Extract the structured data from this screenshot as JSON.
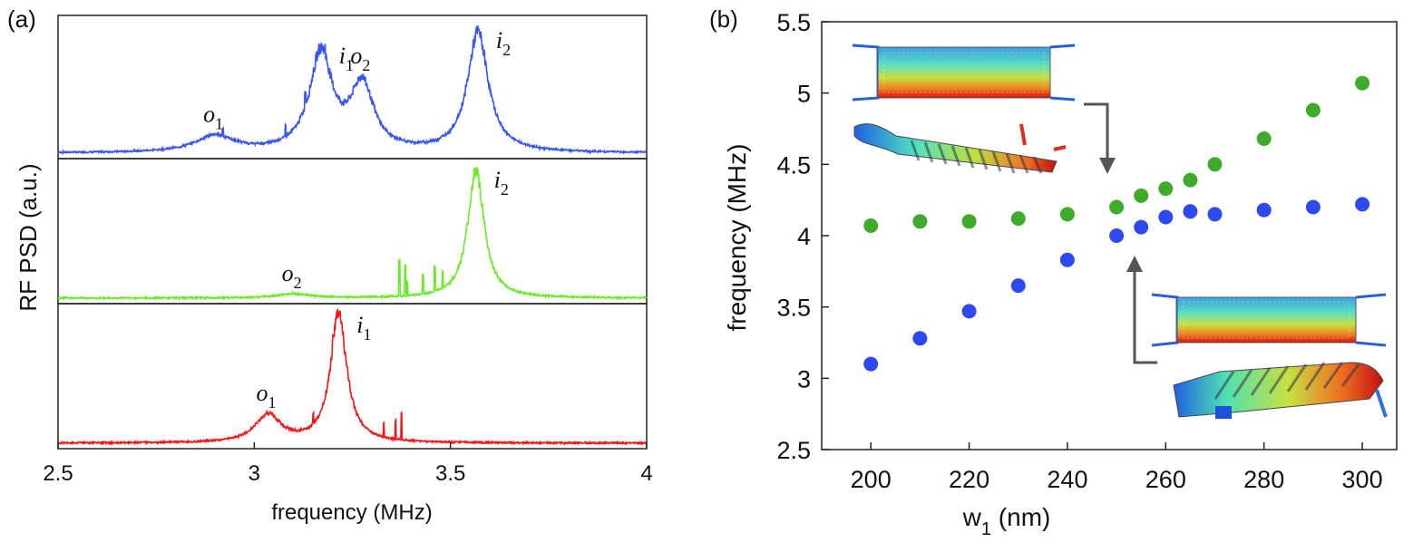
{
  "chart_data": [
    {
      "type": "line",
      "panel_label": "(a)",
      "xlabel": "frequency (MHz)",
      "ylabel": "RF PSD (a.u.)",
      "xlim": [
        2.5,
        4
      ],
      "x_ticks": [
        "2.5",
        "3",
        "3.5",
        "4"
      ],
      "x_tick_values": [
        2.5,
        3,
        3.5,
        4
      ],
      "grid": false,
      "stacked_panels": 3,
      "series": [
        {
          "color": "#3a54f0",
          "baseline": 0.02,
          "noise": 0.012,
          "peaks": [
            {
              "label": "o",
              "sub": "1",
              "x": 2.9,
              "height": 0.12,
              "width": 0.06
            },
            {
              "label": "i",
              "sub": "1",
              "x": 3.17,
              "height": 0.72,
              "width": 0.035
            },
            {
              "label": "o",
              "sub": "2",
              "x": 3.275,
              "height": 0.48,
              "width": 0.035
            },
            {
              "label": "i",
              "sub": "2",
              "x": 3.57,
              "height": 0.88,
              "width": 0.032
            }
          ],
          "spikes": [
            [
              2.92,
              0.05
            ],
            [
              3.08,
              0.08
            ],
            [
              3.13,
              0.1
            ],
            [
              3.18,
              0.06
            ]
          ]
        },
        {
          "color": "#6ee82a",
          "baseline": 0.02,
          "noise": 0.012,
          "peaks": [
            {
              "label": "o",
              "sub": "2",
              "x": 3.1,
              "height": 0.03,
              "width": 0.05
            },
            {
              "label": "i",
              "sub": "2",
              "x": 3.565,
              "height": 0.93,
              "width": 0.025
            }
          ],
          "spikes": [
            [
              3.37,
              0.26
            ],
            [
              3.385,
              0.22
            ],
            [
              3.39,
              0.1
            ],
            [
              3.43,
              0.14
            ],
            [
              3.46,
              0.18
            ],
            [
              3.48,
              0.12
            ]
          ]
        },
        {
          "color": "#f01818",
          "baseline": 0.02,
          "noise": 0.012,
          "peaks": [
            {
              "label": "o",
              "sub": "1",
              "x": 3.035,
              "height": 0.2,
              "width": 0.04
            },
            {
              "label": "i",
              "sub": "1",
              "x": 3.215,
              "height": 0.93,
              "width": 0.025
            }
          ],
          "spikes": [
            [
              3.15,
              0.07
            ],
            [
              3.2,
              0.08
            ],
            [
              3.33,
              0.1
            ],
            [
              3.36,
              0.14
            ],
            [
              3.375,
              0.2
            ]
          ]
        }
      ]
    },
    {
      "type": "scatter",
      "panel_label": "(b)",
      "xlabel_main": "w",
      "xlabel_sub": "1",
      "xlabel_unit": " (nm)",
      "ylabel": "frequency (MHz)",
      "xlim": [
        190,
        307
      ],
      "ylim": [
        2.5,
        5.5
      ],
      "x_ticks": [
        "200",
        "220",
        "240",
        "260",
        "280",
        "300"
      ],
      "x_tick_values": [
        200,
        220,
        240,
        260,
        280,
        300
      ],
      "y_ticks": [
        "2.5",
        "3",
        "3.5",
        "4",
        "4.5",
        "5",
        "5.5"
      ],
      "y_tick_values": [
        2.5,
        3,
        3.5,
        4,
        4.5,
        5,
        5.5
      ],
      "grid": false,
      "series": [
        {
          "color": "#3eab2a",
          "x": [
            200,
            210,
            220,
            230,
            240,
            250,
            255,
            260,
            265,
            270,
            280,
            290,
            300
          ],
          "y": [
            4.07,
            4.1,
            4.1,
            4.12,
            4.15,
            4.2,
            4.28,
            4.33,
            4.39,
            4.5,
            4.68,
            4.88,
            5.07
          ]
        },
        {
          "color": "#2f49f0",
          "x": [
            200,
            210,
            220,
            230,
            240,
            250,
            255,
            260,
            265,
            270,
            280,
            290,
            300
          ],
          "y": [
            3.1,
            3.28,
            3.47,
            3.65,
            3.83,
            4.0,
            4.06,
            4.13,
            4.17,
            4.15,
            4.18,
            4.2,
            4.22
          ]
        }
      ],
      "insets": [
        "mode-shape-top",
        "mode-shape-bottom"
      ]
    }
  ]
}
